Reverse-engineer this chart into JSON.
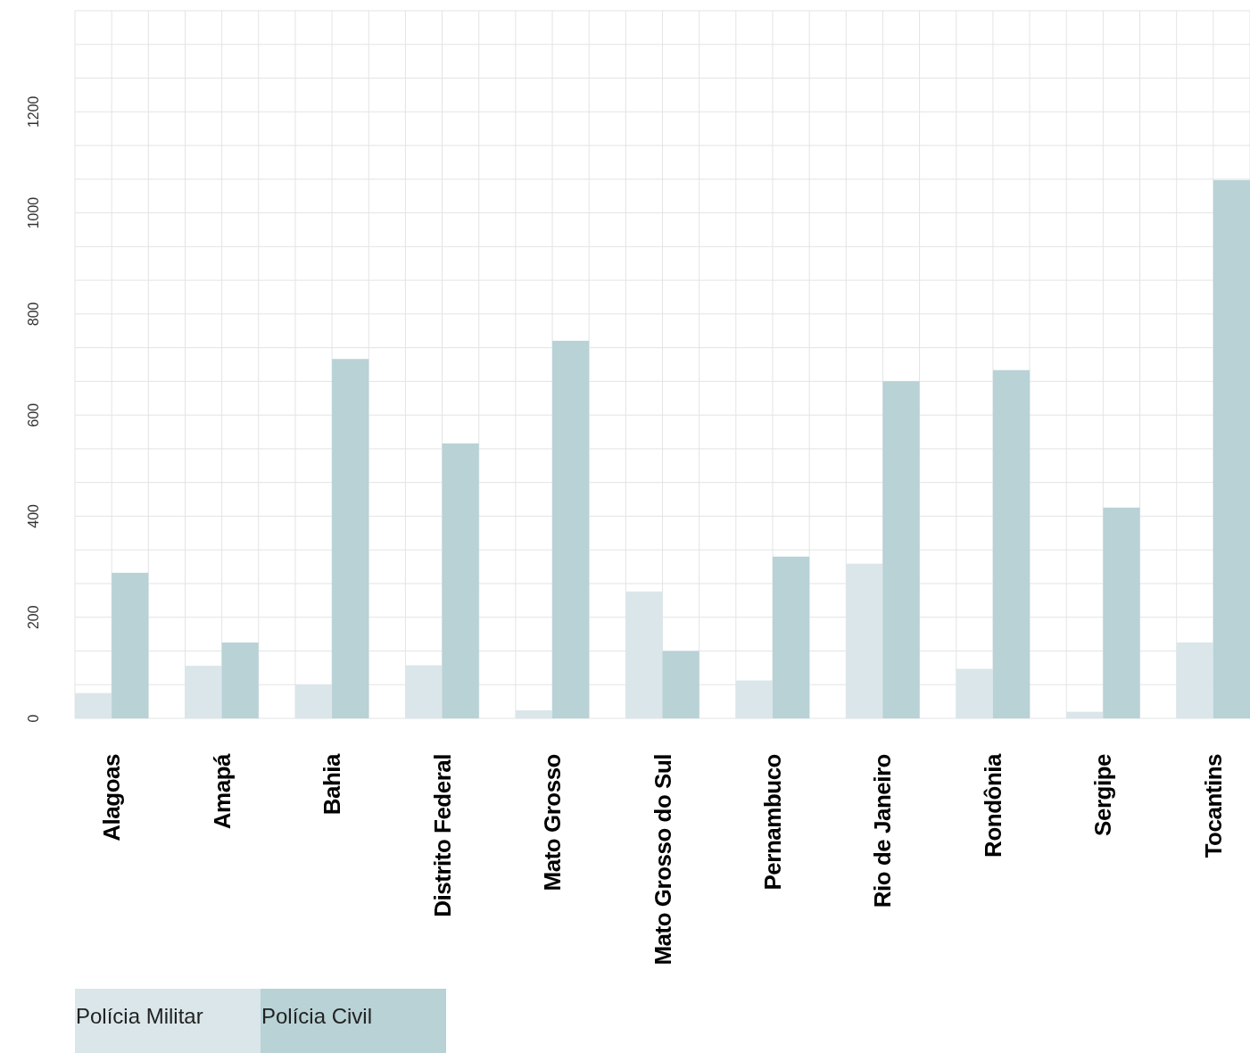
{
  "chart_data": {
    "type": "bar",
    "categories": [
      "Alagoas",
      "Amapá",
      "Bahia",
      "Distrito Federal",
      "Mato Grosso",
      "Mato Grosso do Sul",
      "Pernambuco",
      "Rio de Janeiro",
      "Rondônia",
      "Sergipe",
      "Tocantins"
    ],
    "series": [
      {
        "name": "Polícia Militar",
        "color": "#dae6ea",
        "values": [
          50,
          104,
          67,
          105,
          16,
          251,
          75,
          306,
          98,
          13,
          150
        ]
      },
      {
        "name": "Polícia Civil",
        "color": "#b8d2d6",
        "values": [
          288,
          150,
          711,
          544,
          747,
          133,
          320,
          667,
          689,
          417,
          1065
        ]
      }
    ],
    "ylim": [
      0,
      1400
    ],
    "yticks": [
      0,
      {
        "value": 66.67,
        "label": null
      },
      {
        "value": 133.33,
        "label": null
      },
      200,
      {
        "value": 266.67,
        "label": null
      },
      {
        "value": 333.33,
        "label": null
      },
      400,
      {
        "value": 466.67,
        "label": null
      },
      {
        "value": 533.33,
        "label": null
      },
      600,
      {
        "value": 666.67,
        "label": null
      },
      {
        "value": 733.33,
        "label": null
      },
      800,
      {
        "value": 866.67,
        "label": null
      },
      {
        "value": 933.33,
        "label": null
      },
      1000,
      {
        "value": 1066.67,
        "label": null
      },
      {
        "value": 1133.33,
        "label": null
      },
      1200,
      {
        "value": 1266.67,
        "label": null
      },
      {
        "value": 1333.33,
        "label": null
      },
      {
        "value": 1400,
        "label": null
      }
    ],
    "grid": true,
    "legend": "bottom left"
  }
}
